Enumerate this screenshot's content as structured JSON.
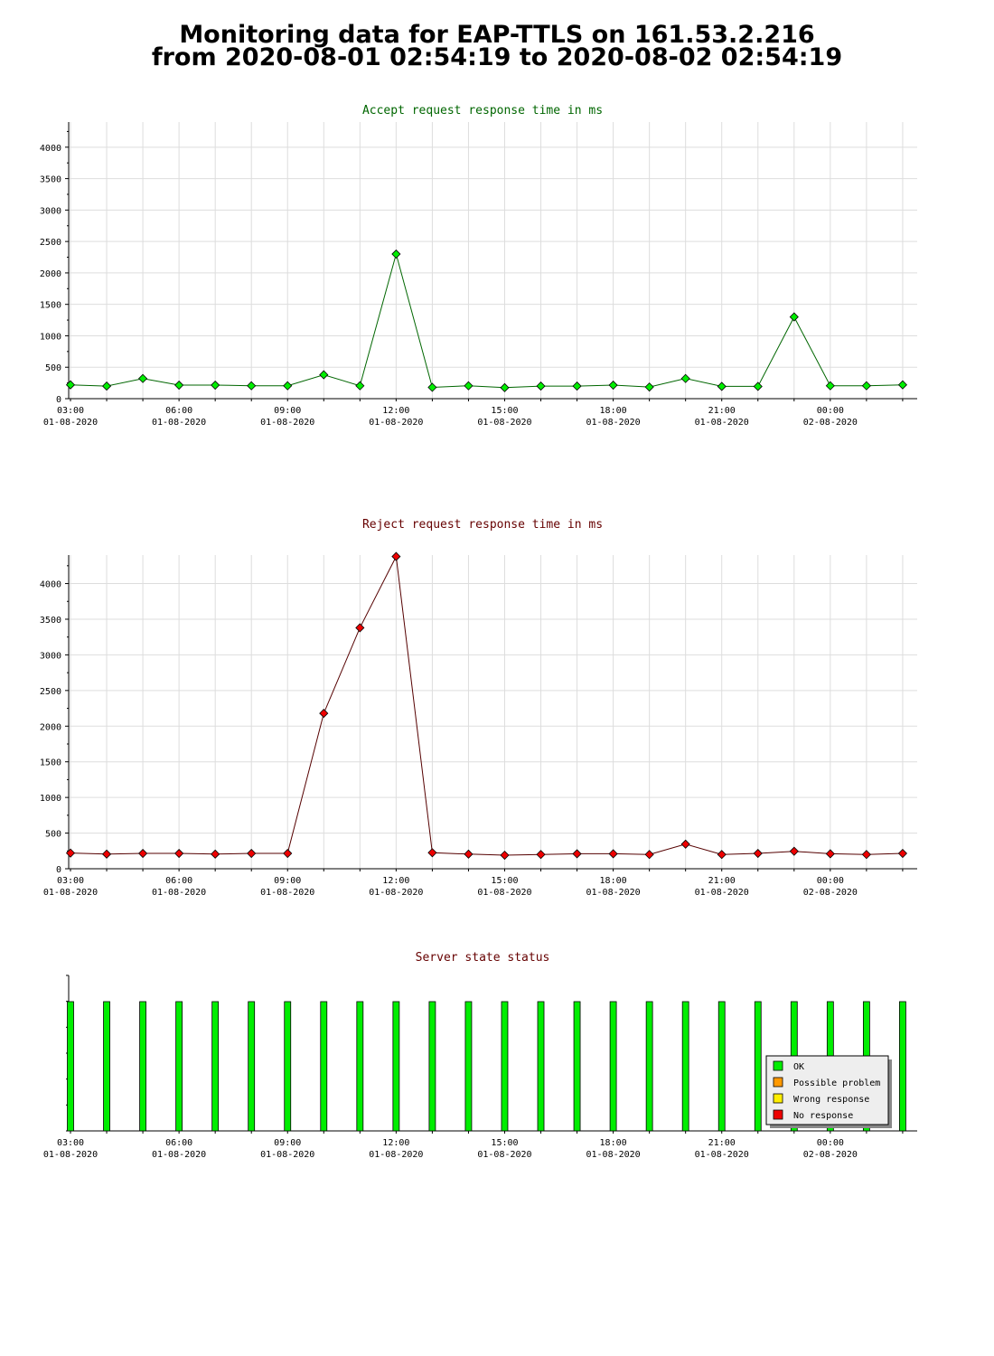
{
  "page": {
    "title_line1": "Monitoring data for EAP-TTLS on 161.53.2.216",
    "title_line2": "from 2020-08-01 02:54:19 to 2020-08-02 02:54:19"
  },
  "colors": {
    "accept": "#00ee00",
    "accept_line": "#006600",
    "reject": "#ee0000",
    "reject_line": "#550000",
    "title_accept": "#006600",
    "title_reject": "#660000",
    "grid": "#dddddd"
  },
  "x_ticks": [
    {
      "time": "03:00",
      "date": "01-08-2020"
    },
    {
      "time": "06:00",
      "date": "01-08-2020"
    },
    {
      "time": "09:00",
      "date": "01-08-2020"
    },
    {
      "time": "12:00",
      "date": "01-08-2020"
    },
    {
      "time": "15:00",
      "date": "01-08-2020"
    },
    {
      "time": "18:00",
      "date": "01-08-2020"
    },
    {
      "time": "21:00",
      "date": "01-08-2020"
    },
    {
      "time": "00:00",
      "date": "02-08-2020"
    }
  ],
  "chart_data": [
    {
      "type": "line",
      "title": "Accept request response time in ms",
      "x": [
        "03:00",
        "04:00",
        "05:00",
        "06:00",
        "07:00",
        "08:00",
        "09:00",
        "10:00",
        "11:00",
        "12:00",
        "13:00",
        "14:00",
        "15:00",
        "16:00",
        "17:00",
        "18:00",
        "19:00",
        "20:00",
        "21:00",
        "22:00",
        "23:00",
        "00:00",
        "01:00",
        "02:00"
      ],
      "series": [
        {
          "values": [
            220,
            200,
            320,
            215,
            215,
            205,
            205,
            380,
            205,
            2300,
            180,
            205,
            175,
            200,
            200,
            215,
            185,
            320,
            195,
            195,
            1300,
            205,
            205,
            220
          ]
        }
      ],
      "ylim": [
        0,
        4400
      ],
      "yticks": [
        0,
        500,
        1000,
        1500,
        2000,
        2500,
        3000,
        3500,
        4000
      ],
      "grid": true
    },
    {
      "type": "line",
      "title": "Reject request response time in ms",
      "x": [
        "03:00",
        "04:00",
        "05:00",
        "06:00",
        "07:00",
        "08:00",
        "09:00",
        "10:00",
        "11:00",
        "12:00",
        "13:00",
        "14:00",
        "15:00",
        "16:00",
        "17:00",
        "18:00",
        "19:00",
        "20:00",
        "21:00",
        "22:00",
        "23:00",
        "00:00",
        "01:00",
        "02:00"
      ],
      "series": [
        {
          "values": [
            220,
            205,
            215,
            215,
            205,
            215,
            215,
            2180,
            3380,
            4380,
            225,
            205,
            190,
            200,
            210,
            210,
            200,
            345,
            200,
            215,
            245,
            210,
            200,
            215
          ]
        }
      ],
      "ylim": [
        0,
        4400
      ],
      "yticks": [
        0,
        500,
        1000,
        1500,
        2000,
        2500,
        3000,
        3500,
        4000
      ],
      "grid": true
    },
    {
      "type": "bar",
      "title": "Server state status",
      "x": [
        "03:00",
        "04:00",
        "05:00",
        "06:00",
        "07:00",
        "08:00",
        "09:00",
        "10:00",
        "11:00",
        "12:00",
        "13:00",
        "14:00",
        "15:00",
        "16:00",
        "17:00",
        "18:00",
        "19:00",
        "20:00",
        "21:00",
        "22:00",
        "23:00",
        "00:00",
        "01:00",
        "02:00"
      ],
      "states": [
        "OK",
        "OK",
        "OK",
        "OK",
        "OK",
        "OK",
        "OK",
        "OK",
        "OK",
        "OK",
        "OK",
        "OK",
        "OK",
        "OK",
        "OK",
        "OK",
        "OK",
        "OK",
        "OK",
        "OK",
        "OK",
        "OK",
        "OK",
        "OK"
      ],
      "legend": [
        {
          "label": "OK",
          "color": "#00ee00"
        },
        {
          "label": "Possible problem",
          "color": "#ff9900"
        },
        {
          "label": "Wrong response",
          "color": "#ffee00"
        },
        {
          "label": "No response",
          "color": "#ee0000"
        }
      ],
      "legend_position": "bottom-right"
    }
  ]
}
